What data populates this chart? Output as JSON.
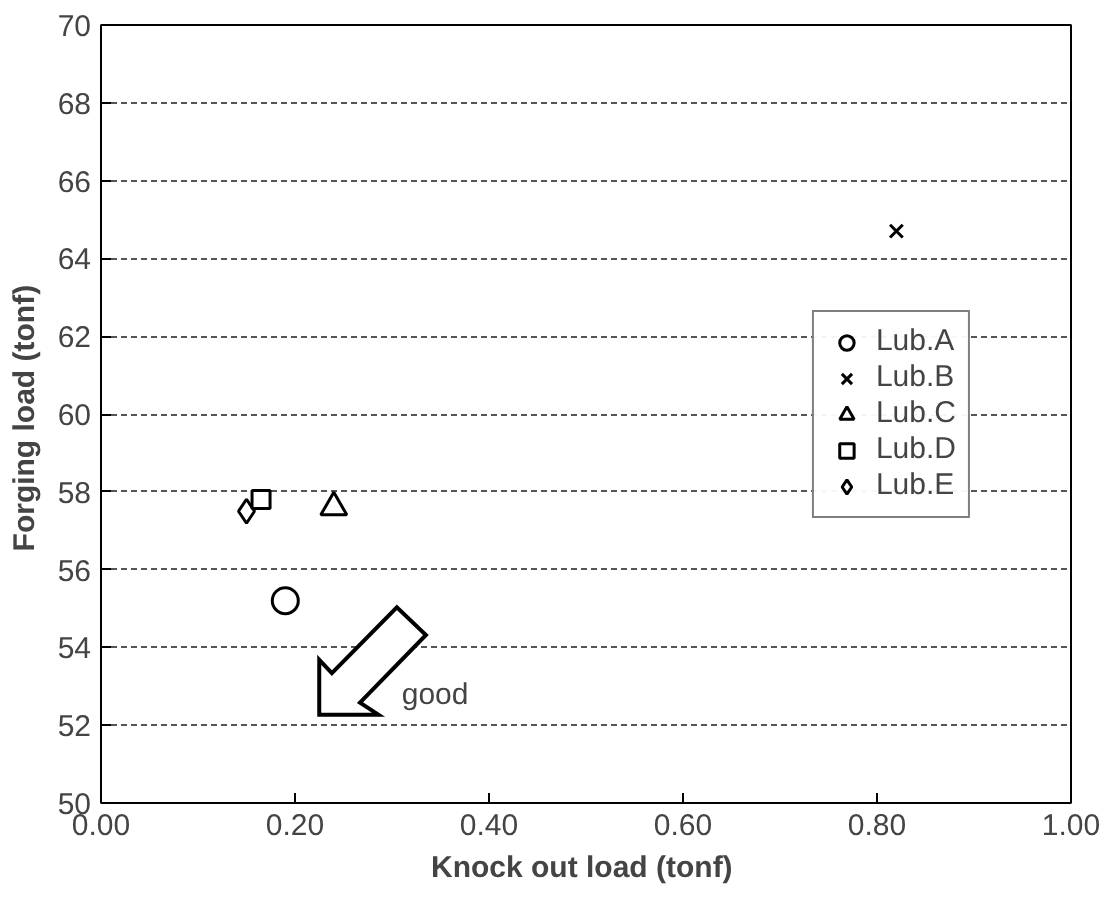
{
  "chart_data": {
    "type": "scatter",
    "xlabel": "Knock out load  (tonf)",
    "ylabel": "Forging load  (tonf)",
    "xlim": [
      0,
      1
    ],
    "xticks": [
      {
        "value": 0,
        "label": "0.00"
      },
      {
        "value": 0.2,
        "label": "0.20"
      },
      {
        "value": 0.4,
        "label": "0.40"
      },
      {
        "value": 0.6,
        "label": "0.60"
      },
      {
        "value": 0.8,
        "label": "0.80"
      },
      {
        "value": 1,
        "label": "1.00"
      }
    ],
    "ylim": [
      50,
      70
    ],
    "yticks": [
      50,
      52,
      54,
      56,
      58,
      60,
      62,
      64,
      66,
      68,
      70
    ],
    "grid": "y",
    "legend": "right",
    "series": [
      {
        "name": "Lub.A",
        "color": "#000000",
        "marker": "circle",
        "x": [
          0.19
        ],
        "values": [
          55.2
        ]
      },
      {
        "name": "Lub.B",
        "color": "#000000",
        "marker": "cross",
        "x": [
          0.82
        ],
        "values": [
          64.7
        ]
      },
      {
        "name": "Lub.C",
        "color": "#000000",
        "marker": "triangle",
        "x": [
          0.24
        ],
        "values": [
          57.6
        ]
      },
      {
        "name": "Lub.D",
        "color": "#000000",
        "marker": "square",
        "x": [
          0.165
        ],
        "values": [
          57.8
        ]
      },
      {
        "name": "Lub.E",
        "color": "#000000",
        "marker": "diamond",
        "x": [
          0.15
        ],
        "values": [
          57.5
        ]
      }
    ],
    "annotations": [
      "good"
    ]
  }
}
